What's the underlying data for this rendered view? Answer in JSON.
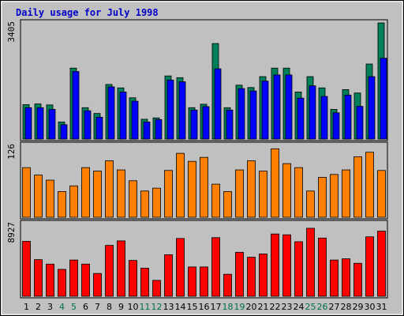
{
  "title": "Daily usage for July 1998",
  "colors": {
    "background": "#c0c0c0",
    "hits_series": "#00805a",
    "files_series": "#0000ff",
    "sites_series": "#ff8000",
    "kbytes_series": "#ff0000",
    "weekday_label": "#000000",
    "weekend_label": "#007050",
    "title": "#0000c8"
  },
  "chart_data": [
    {
      "type": "bar",
      "panel": "top",
      "categories": [
        "1",
        "2",
        "3",
        "4",
        "5",
        "6",
        "7",
        "8",
        "9",
        "10",
        "11",
        "12",
        "13",
        "14",
        "15",
        "16",
        "17",
        "18",
        "19",
        "20",
        "21",
        "22",
        "23",
        "24",
        "25",
        "26",
        "27",
        "28",
        "29",
        "30",
        "31"
      ],
      "weekend_days": [
        "4",
        "5",
        "11",
        "12",
        "18",
        "19",
        "25",
        "26"
      ],
      "ymax_label": "3405",
      "ylim": [
        0,
        3405
      ],
      "series": [
        {
          "values": [
            1010,
            1030,
            1000,
            500,
            2080,
            920,
            750,
            1600,
            1500,
            1210,
            580,
            620,
            1850,
            1800,
            920,
            1020,
            2800,
            920,
            1580,
            1510,
            1830,
            2080,
            2080,
            1380,
            1830,
            1500,
            870,
            1450,
            1350,
            2200,
            3405
          ],
          "color": "#00805a"
        },
        {
          "values": [
            920,
            920,
            870,
            420,
            1980,
            830,
            640,
            1530,
            1380,
            1110,
            500,
            570,
            1730,
            1680,
            850,
            950,
            2060,
            850,
            1480,
            1410,
            1700,
            1880,
            1880,
            1200,
            1560,
            1250,
            770,
            1290,
            960,
            1830,
            2370
          ],
          "color": "#0000ff"
        }
      ]
    },
    {
      "type": "bar",
      "panel": "middle",
      "categories": [
        "1",
        "2",
        "3",
        "4",
        "5",
        "6",
        "7",
        "8",
        "9",
        "10",
        "11",
        "12",
        "13",
        "14",
        "15",
        "16",
        "17",
        "18",
        "19",
        "20",
        "21",
        "22",
        "23",
        "24",
        "25",
        "26",
        "27",
        "28",
        "29",
        "30",
        "31"
      ],
      "ymax_label": "126",
      "ylim": [
        0,
        126
      ],
      "series": [
        {
          "values": [
            87,
            74,
            65,
            45,
            55,
            87,
            81,
            99,
            83,
            64,
            46,
            51,
            82,
            112,
            98,
            105,
            58,
            45,
            83,
            99,
            81,
            120,
            94,
            87,
            46,
            70,
            75,
            83,
            106,
            114,
            82
          ],
          "color": "#ff8000"
        }
      ]
    },
    {
      "type": "bar",
      "panel": "bottom",
      "categories": [
        "1",
        "2",
        "3",
        "4",
        "5",
        "6",
        "7",
        "8",
        "9",
        "10",
        "11",
        "12",
        "13",
        "14",
        "15",
        "16",
        "17",
        "18",
        "19",
        "20",
        "21",
        "22",
        "23",
        "24",
        "25",
        "26",
        "27",
        "28",
        "29",
        "30",
        "31"
      ],
      "ymax_label": "8927",
      "ylim": [
        0,
        8927
      ],
      "series": [
        {
          "values": [
            6750,
            4500,
            3950,
            3300,
            4450,
            3950,
            2800,
            6250,
            6800,
            4400,
            3450,
            1950,
            5100,
            7100,
            3600,
            3600,
            7200,
            2700,
            5400,
            4800,
            5200,
            7650,
            7550,
            6700,
            8350,
            7150,
            4450,
            4600,
            4050,
            7300,
            8000
          ],
          "color": "#ff0000"
        }
      ]
    }
  ]
}
